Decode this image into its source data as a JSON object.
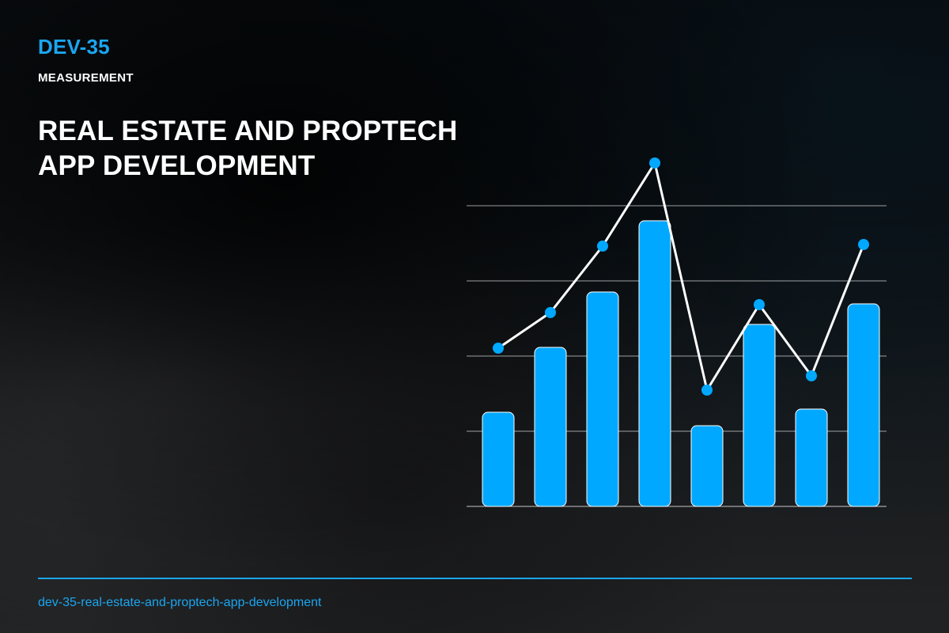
{
  "header": {
    "code": "DEV-35",
    "category": "MEASUREMENT",
    "title_line1": "REAL ESTATE AND PROPTECH",
    "title_line2": "APP DEVELOPMENT"
  },
  "footer": {
    "slug": "dev-35-real-estate-and-proptech-app-development"
  },
  "colors": {
    "accent": "#1aa6f0",
    "bar": "#00a8ff",
    "line": "#ffffff",
    "grid": "#ffffff"
  },
  "chart_data": {
    "type": "bar",
    "grid": true,
    "ylim": [
      0,
      380
    ],
    "categories": [
      "",
      "",
      "",
      "",
      "",
      "",
      "",
      ""
    ],
    "series": [
      {
        "type": "bar",
        "values": [
          119,
          201,
          271,
          361,
          102,
          230,
          123,
          256
        ]
      },
      {
        "type": "line",
        "values": [
          200,
          245,
          329,
          434,
          147,
          255,
          165,
          331
        ]
      }
    ]
  }
}
